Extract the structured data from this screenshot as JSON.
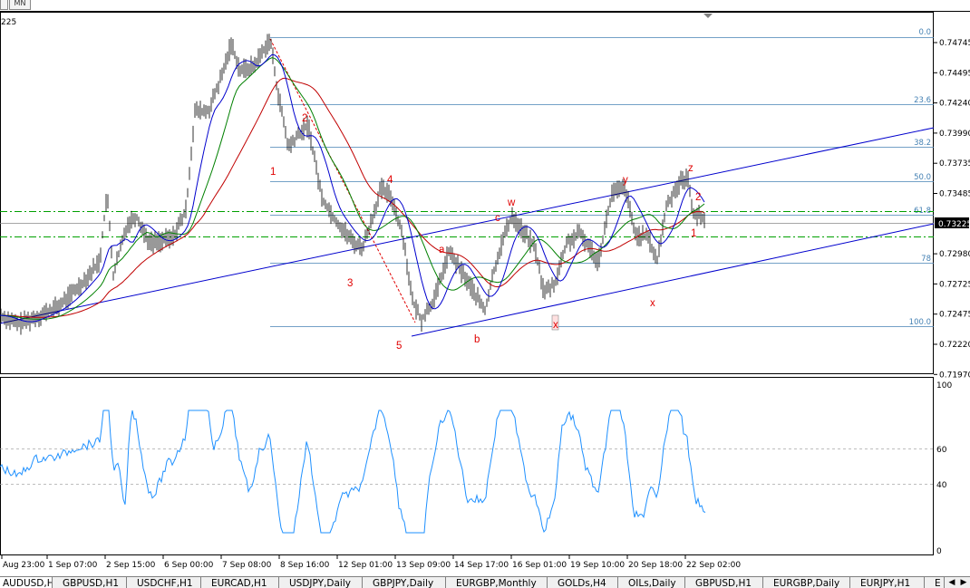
{
  "toolbar": {
    "timeframes": [
      "",
      "MN"
    ]
  },
  "chart": {
    "indicator_label": "225",
    "price_ticks": [
      "0.74745",
      "0.74495",
      "0.74240",
      "0.73990",
      "0.73735",
      "0.73485",
      "0.73225",
      "0.72980",
      "0.72725",
      "0.72475",
      "0.72220",
      "0.71970"
    ],
    "current_price": "0.73225",
    "time_labels": [
      "Aug 23:00",
      "1 Sep 07:00",
      "2 Sep 15:00",
      "6 Sep 00:00",
      "7 Sep 08:00",
      "8 Sep 16:00",
      "12 Sep 01:00",
      "13 Sep 09:00",
      "14 Sep 17:00",
      "16 Sep 01:00",
      "19 Sep 10:00",
      "20 Sep 18:00",
      "22 Sep 02:00"
    ],
    "fib_levels": [
      "0.0",
      "23.6",
      "38.2",
      "50.0",
      "61.8",
      "78",
      "100.0"
    ],
    "wave_labels": [
      "1",
      "2",
      "3",
      "4",
      "5",
      "a",
      "b",
      "c",
      "w",
      "x",
      "x",
      "y",
      "z",
      "1",
      "2"
    ],
    "rsi_ticks": [
      "100",
      "60",
      "40",
      "0"
    ],
    "colors": {
      "fib_line": "#4682B4",
      "channel": "#0000CD",
      "wave_label": "#E00000",
      "rsi": "#1E90FF",
      "ma_fast": "#0000CD",
      "ma_mid": "#008000",
      "ma_slow": "#C00000",
      "dashdot": "#00A000"
    }
  },
  "tabs": [
    {
      "label": "AUDUSD,H1",
      "active": true
    },
    {
      "label": "GBPUSD,H1",
      "active": false
    },
    {
      "label": "USDCHF,H1",
      "active": false
    },
    {
      "label": "EURCAD,H1",
      "active": false
    },
    {
      "label": "USDJPY,Daily",
      "active": false
    },
    {
      "label": "GBPJPY,Daily",
      "active": false
    },
    {
      "label": "EURGBP,Monthly",
      "active": false
    },
    {
      "label": "GOLDs,H4",
      "active": false
    },
    {
      "label": "OILs,Daily",
      "active": false
    },
    {
      "label": "GBPUSD,H1",
      "active": false
    },
    {
      "label": "EURGBP,Daily",
      "active": false
    },
    {
      "label": "EURJPY,H1",
      "active": false
    },
    {
      "label": "E",
      "active": false
    }
  ]
}
